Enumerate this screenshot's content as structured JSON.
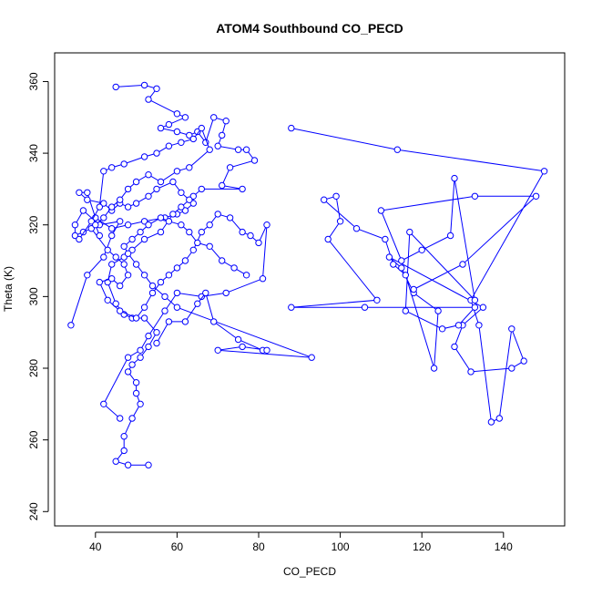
{
  "chart_data": {
    "type": "line",
    "title": "ATOM4 Southbound CO_PECD",
    "xlabel": "CO_PECD",
    "ylabel": "Theta (K)",
    "xlim": [
      30,
      155
    ],
    "ylim": [
      236,
      368
    ],
    "x_ticks": [
      40,
      60,
      80,
      100,
      120,
      140
    ],
    "y_ticks": [
      240,
      260,
      280,
      300,
      320,
      340,
      360
    ],
    "grid": false,
    "legend": "none",
    "colors": {
      "series": "#0000ff",
      "text": "#000000",
      "background": "#ffffff",
      "frame": "#000000"
    },
    "markers": "open-circle",
    "series": [
      {
        "points": [
          [
            45,
            358.5
          ],
          [
            52,
            359
          ],
          [
            55,
            358
          ],
          [
            53,
            355
          ],
          [
            60,
            351
          ],
          [
            62,
            350
          ],
          [
            58,
            348
          ],
          [
            56,
            347
          ],
          [
            60,
            346
          ],
          [
            63,
            345
          ],
          [
            65,
            346
          ],
          [
            67,
            343
          ],
          [
            69,
            350
          ],
          [
            72,
            349
          ],
          [
            71,
            345
          ],
          [
            70,
            342
          ],
          [
            75,
            341
          ],
          [
            77,
            341
          ],
          [
            79,
            338
          ],
          [
            73,
            336
          ],
          [
            71,
            331
          ],
          [
            76,
            330
          ],
          [
            66,
            330
          ],
          [
            64,
            328
          ],
          [
            64,
            326
          ],
          [
            62,
            324
          ],
          [
            60,
            323
          ],
          [
            57,
            322
          ],
          [
            52,
            321
          ],
          [
            48,
            320
          ],
          [
            44,
            319
          ],
          [
            40,
            322
          ],
          [
            38,
            329
          ],
          [
            36,
            329
          ],
          [
            38,
            327
          ],
          [
            42,
            326
          ],
          [
            44,
            324
          ],
          [
            46,
            326
          ],
          [
            48,
            325
          ],
          [
            50,
            326
          ],
          [
            53,
            328
          ],
          [
            55,
            330
          ],
          [
            59,
            332
          ],
          [
            61,
            329
          ],
          [
            63,
            327
          ],
          [
            61,
            325
          ],
          [
            59,
            323
          ],
          [
            56,
            318
          ],
          [
            52,
            316
          ],
          [
            49,
            313
          ],
          [
            47,
            311
          ],
          [
            44,
            309
          ],
          [
            43,
            304
          ],
          [
            45,
            298
          ],
          [
            47,
            295
          ],
          [
            49,
            294
          ],
          [
            52,
            294
          ],
          [
            55,
            290
          ],
          [
            53,
            286
          ],
          [
            51,
            283
          ],
          [
            49,
            281
          ],
          [
            48,
            279
          ],
          [
            50,
            276
          ],
          [
            50,
            273
          ],
          [
            51,
            270
          ],
          [
            49,
            266
          ],
          [
            47,
            261
          ],
          [
            47,
            257
          ],
          [
            45,
            254
          ],
          [
            48,
            253
          ],
          [
            53,
            253
          ]
        ]
      },
      {
        "points": [
          [
            88,
            347
          ],
          [
            114,
            341
          ],
          [
            150,
            335
          ],
          [
            132,
            299
          ],
          [
            134,
            292
          ],
          [
            137,
            265
          ],
          [
            139,
            266
          ],
          [
            142,
            291
          ],
          [
            145,
            282
          ],
          [
            142,
            280
          ],
          [
            132,
            279
          ],
          [
            128,
            286
          ],
          [
            130,
            292
          ],
          [
            135,
            297
          ],
          [
            112,
            311
          ],
          [
            115,
            308
          ],
          [
            118,
            301
          ],
          [
            124,
            296
          ],
          [
            123,
            280
          ],
          [
            116,
            306
          ],
          [
            113,
            309
          ],
          [
            111,
            316
          ],
          [
            104,
            319
          ],
          [
            96,
            327
          ],
          [
            99,
            328
          ],
          [
            100,
            321
          ],
          [
            97,
            316
          ],
          [
            109,
            299
          ],
          [
            88,
            297
          ],
          [
            106,
            297
          ],
          [
            133,
            297
          ],
          [
            129,
            292
          ],
          [
            125,
            291
          ],
          [
            116,
            296
          ],
          [
            117,
            318
          ],
          [
            133,
            299
          ],
          [
            128,
            333
          ],
          [
            127,
            317
          ],
          [
            120,
            313
          ],
          [
            115,
            310
          ],
          [
            110,
            324
          ],
          [
            133,
            328
          ],
          [
            148,
            328
          ],
          [
            130,
            309
          ],
          [
            118,
            302
          ]
        ]
      },
      {
        "points": [
          [
            34,
            292
          ],
          [
            38,
            306
          ],
          [
            42,
            311
          ],
          [
            44,
            317
          ],
          [
            46,
            321
          ],
          [
            41,
            320
          ],
          [
            37,
            324
          ],
          [
            35,
            320
          ],
          [
            35,
            317
          ],
          [
            37,
            318
          ],
          [
            39,
            319
          ],
          [
            43,
            313
          ],
          [
            45,
            311
          ],
          [
            47,
            309
          ],
          [
            48,
            306
          ],
          [
            46,
            303
          ],
          [
            44,
            305
          ],
          [
            41,
            304
          ],
          [
            43,
            299
          ],
          [
            46,
            296
          ],
          [
            50,
            294
          ],
          [
            52,
            297
          ],
          [
            54,
            301
          ],
          [
            56,
            304
          ],
          [
            58,
            306
          ],
          [
            60,
            308
          ],
          [
            62,
            310
          ],
          [
            64,
            313
          ],
          [
            66,
            318
          ],
          [
            68,
            320
          ],
          [
            70,
            323
          ],
          [
            73,
            322
          ],
          [
            76,
            318
          ],
          [
            78,
            317
          ],
          [
            80,
            315
          ],
          [
            82,
            320
          ],
          [
            81,
            305
          ],
          [
            72,
            301
          ],
          [
            66,
            300
          ],
          [
            60,
            301
          ],
          [
            57,
            296
          ],
          [
            53,
            289
          ],
          [
            51,
            285
          ],
          [
            48,
            283
          ],
          [
            42,
            270
          ],
          [
            46,
            266
          ]
        ]
      },
      {
        "points": [
          [
            55,
            287
          ],
          [
            58,
            293
          ],
          [
            62,
            293
          ],
          [
            65,
            298
          ],
          [
            67,
            301
          ],
          [
            69,
            293
          ],
          [
            75,
            288
          ],
          [
            81,
            285
          ],
          [
            82,
            285
          ],
          [
            76,
            286
          ],
          [
            70,
            285
          ],
          [
            93,
            283
          ],
          [
            60,
            297
          ],
          [
            57,
            300
          ],
          [
            54,
            303
          ],
          [
            52,
            306
          ],
          [
            50,
            309
          ],
          [
            48,
            312
          ],
          [
            47,
            314
          ],
          [
            49,
            316
          ],
          [
            51,
            318
          ],
          [
            53,
            320
          ],
          [
            56,
            322
          ],
          [
            58,
            321
          ],
          [
            61,
            320
          ],
          [
            63,
            318
          ],
          [
            65,
            315
          ],
          [
            68,
            314
          ],
          [
            71,
            310
          ],
          [
            74,
            308
          ],
          [
            77,
            306
          ]
        ]
      },
      {
        "points": [
          [
            36,
            316
          ],
          [
            39,
            321
          ],
          [
            41,
            325
          ],
          [
            42,
            335
          ],
          [
            44,
            336
          ],
          [
            47,
            337
          ],
          [
            52,
            339
          ],
          [
            55,
            340
          ],
          [
            58,
            342
          ],
          [
            61,
            343
          ],
          [
            64,
            344
          ],
          [
            66,
            347
          ],
          [
            68,
            341
          ],
          [
            63,
            336
          ],
          [
            60,
            335
          ],
          [
            56,
            332
          ],
          [
            53,
            334
          ],
          [
            50,
            332
          ],
          [
            48,
            330
          ],
          [
            46,
            327
          ],
          [
            44,
            325
          ],
          [
            42,
            322
          ],
          [
            40,
            320
          ],
          [
            41,
            317
          ]
        ]
      }
    ]
  }
}
